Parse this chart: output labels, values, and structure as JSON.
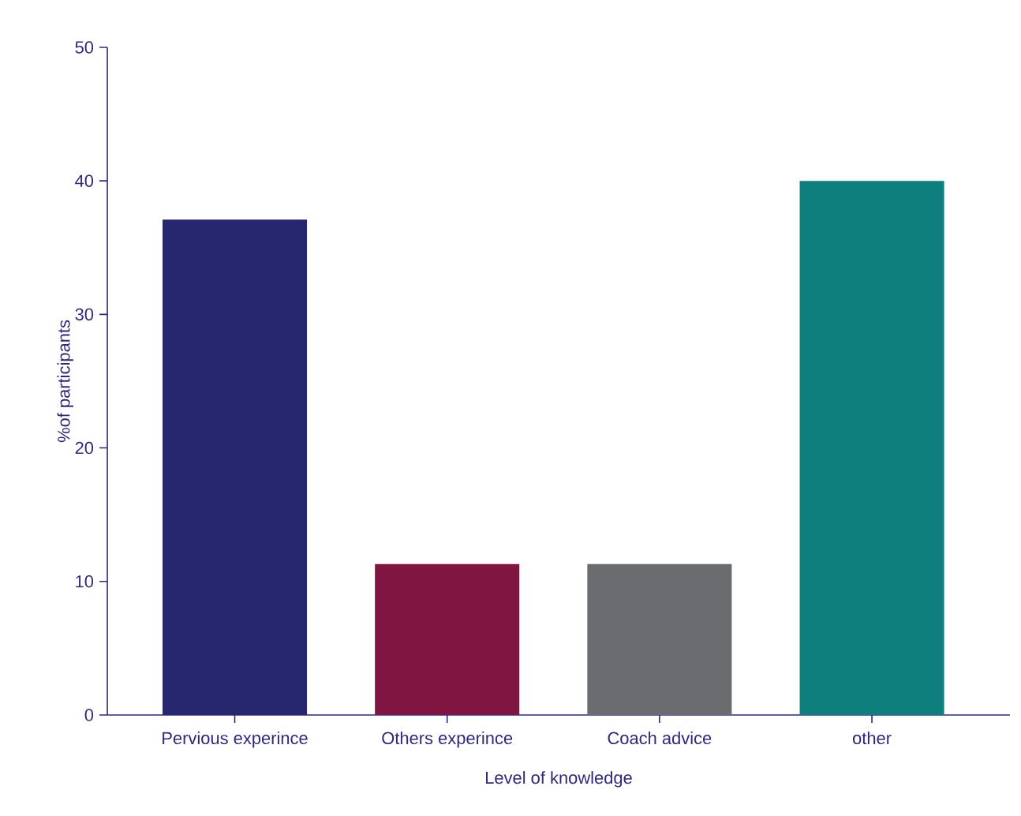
{
  "chart_data": {
    "type": "bar",
    "xlabel": "Level of knowledge",
    "ylabel": "%of participants",
    "categories": [
      "Pervious experince",
      "Others experince",
      "Coach advice",
      "other"
    ],
    "values": [
      37.1,
      11.3,
      11.3,
      40
    ],
    "colors": [
      "#27276f",
      "#7f1540",
      "#6b6c70",
      "#0e7f7c"
    ],
    "ylim": [
      0,
      50
    ],
    "yticks": [
      0,
      10,
      20,
      30,
      40,
      50
    ],
    "grid": false
  }
}
